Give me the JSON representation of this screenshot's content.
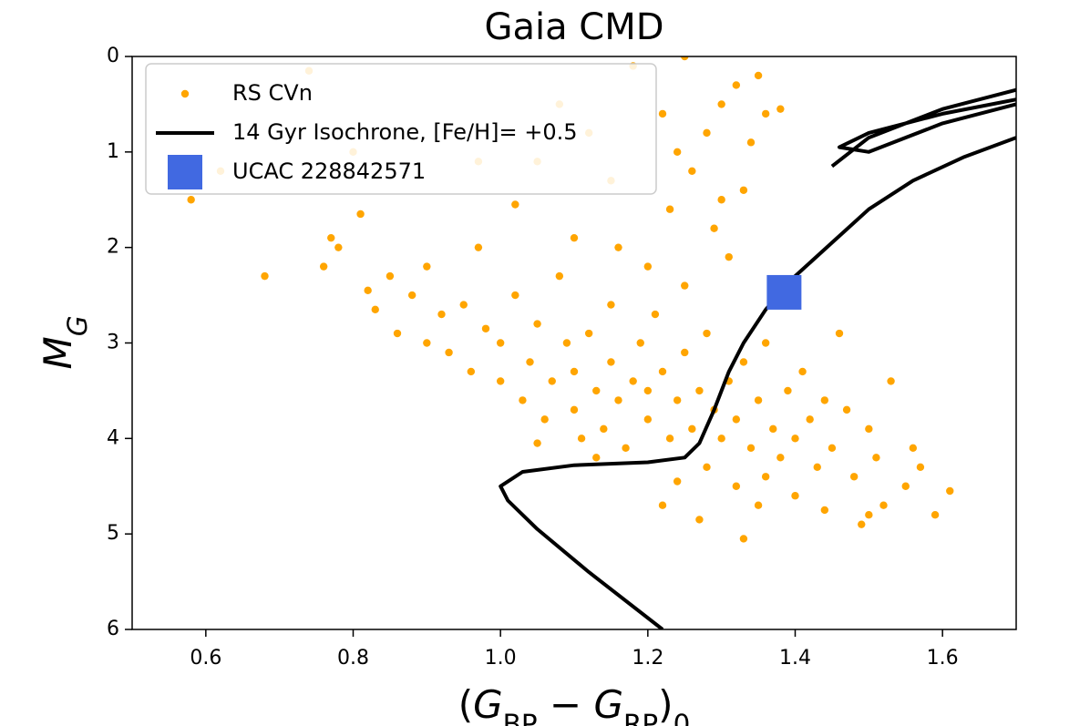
{
  "chart_data": {
    "type": "scatter",
    "title": "Gaia CMD",
    "xlabel": [
      {
        "text": "("
      },
      {
        "text": "G",
        "italic": true
      },
      {
        "text": "BP",
        "sub": true
      },
      {
        "text": " − "
      },
      {
        "text": "G",
        "italic": true
      },
      {
        "text": "RP",
        "sub": true
      },
      {
        "text": ")"
      },
      {
        "text": "0",
        "sub": true
      }
    ],
    "ylabel": [
      {
        "text": "M",
        "italic": true
      },
      {
        "text": "G",
        "sub": true,
        "italic": true
      }
    ],
    "xlim": [
      0.5,
      1.7
    ],
    "ylim": [
      6,
      0
    ],
    "xticks": [
      0.6,
      0.8,
      {
        "value": 1,
        "label": "1.0"
      },
      1.2,
      1.4,
      1.6
    ],
    "yticks": [
      0,
      1,
      2,
      3,
      4,
      5,
      6
    ],
    "legend": "upper left",
    "series": [
      {
        "name": "RS CVn",
        "style": "point",
        "color": "#ffa500",
        "x": [
          0.58,
          0.62,
          0.68,
          0.74,
          0.76,
          0.77,
          0.78,
          0.8,
          0.81,
          0.82,
          0.83,
          0.85,
          0.86,
          0.88,
          0.9,
          0.9,
          0.92,
          0.93,
          0.95,
          0.96,
          0.97,
          0.98,
          1.0,
          1.0,
          1.02,
          1.03,
          1.04,
          1.05,
          1.06,
          1.07,
          1.08,
          1.09,
          1.1,
          1.1,
          1.11,
          1.12,
          1.13,
          1.14,
          1.15,
          1.15,
          1.16,
          1.17,
          1.18,
          1.19,
          1.2,
          1.2,
          1.21,
          1.22,
          1.23,
          1.24,
          1.25,
          1.25,
          1.26,
          1.27,
          1.28,
          1.28,
          1.29,
          1.3,
          1.31,
          1.32,
          1.32,
          1.33,
          1.33,
          1.34,
          1.35,
          1.36,
          1.36,
          1.37,
          1.38,
          1.39,
          1.4,
          1.4,
          1.41,
          1.42,
          1.43,
          1.44,
          1.45,
          1.46,
          1.47,
          1.48,
          1.49,
          1.5,
          1.51,
          1.52,
          1.53,
          1.55,
          1.56,
          1.57,
          1.59,
          1.61,
          1.22,
          1.27,
          1.2,
          1.23,
          1.26,
          1.3,
          1.32,
          1.34,
          1.35,
          1.36,
          1.29,
          1.31,
          1.33,
          1.38,
          1.24,
          1.15,
          1.12,
          1.08,
          1.05,
          1.18,
          1.25,
          1.1,
          1.02,
          1.16,
          1.28,
          0.97,
          1.22,
          1.3,
          1.05,
          1.13,
          1.24,
          1.44,
          1.5,
          1.35
        ],
        "y": [
          1.5,
          1.2,
          2.3,
          0.15,
          2.2,
          1.9,
          2.0,
          1.0,
          1.65,
          2.45,
          2.65,
          2.3,
          2.9,
          2.5,
          3.0,
          2.2,
          2.7,
          3.1,
          2.6,
          3.3,
          2.0,
          2.85,
          3.4,
          3.0,
          2.5,
          3.6,
          3.2,
          2.8,
          3.8,
          3.4,
          2.3,
          3.0,
          3.7,
          3.3,
          4.0,
          2.9,
          3.5,
          3.9,
          3.2,
          2.6,
          3.6,
          4.1,
          3.4,
          3.0,
          3.8,
          3.5,
          2.7,
          3.3,
          4.0,
          3.6,
          3.1,
          2.4,
          3.9,
          3.5,
          4.3,
          2.9,
          3.7,
          4.0,
          3.4,
          4.5,
          3.8,
          5.05,
          3.2,
          4.1,
          3.6,
          4.4,
          3.0,
          3.9,
          4.2,
          3.5,
          4.0,
          4.6,
          3.3,
          3.8,
          4.3,
          3.6,
          4.1,
          2.9,
          3.7,
          4.4,
          4.9,
          3.9,
          4.2,
          4.7,
          3.4,
          4.5,
          4.1,
          4.3,
          4.8,
          4.55,
          4.7,
          4.85,
          2.2,
          1.6,
          1.2,
          0.5,
          0.3,
          0.9,
          0.2,
          0.6,
          1.8,
          2.1,
          1.4,
          0.55,
          1.0,
          1.3,
          0.8,
          0.5,
          1.1,
          0.1,
          0.0,
          1.9,
          1.55,
          2.0,
          0.8,
          1.1,
          0.6,
          1.5,
          4.05,
          4.2,
          4.45,
          4.75,
          4.8,
          4.7
        ]
      },
      {
        "name": "14 Gyr Isochrone, [Fe/H]= +0.5",
        "style": "line",
        "color": "#000000",
        "x": [
          1.22,
          1.12,
          1.05,
          1.01,
          1.0,
          1.03,
          1.1,
          1.2,
          1.25,
          1.27,
          1.29,
          1.31,
          1.33,
          1.36,
          1.4,
          1.45,
          1.5,
          1.56,
          1.63,
          1.7,
          null,
          1.7,
          1.6,
          1.5,
          1.46,
          1.5,
          1.6,
          1.7,
          null,
          1.7,
          1.6,
          1.5,
          1.45
        ],
        "y": [
          6.0,
          5.4,
          4.95,
          4.65,
          4.5,
          4.35,
          4.28,
          4.25,
          4.2,
          4.05,
          3.7,
          3.3,
          3.0,
          2.65,
          2.3,
          1.95,
          1.6,
          1.3,
          1.05,
          0.85,
          null,
          0.45,
          0.6,
          0.8,
          0.95,
          1.0,
          0.7,
          0.5,
          null,
          0.35,
          0.55,
          0.85,
          1.15
        ]
      },
      {
        "name": "UCAC 228842571",
        "style": "square",
        "color": "#4169e1",
        "x": [
          1.385
        ],
        "y": [
          2.47
        ]
      }
    ]
  }
}
